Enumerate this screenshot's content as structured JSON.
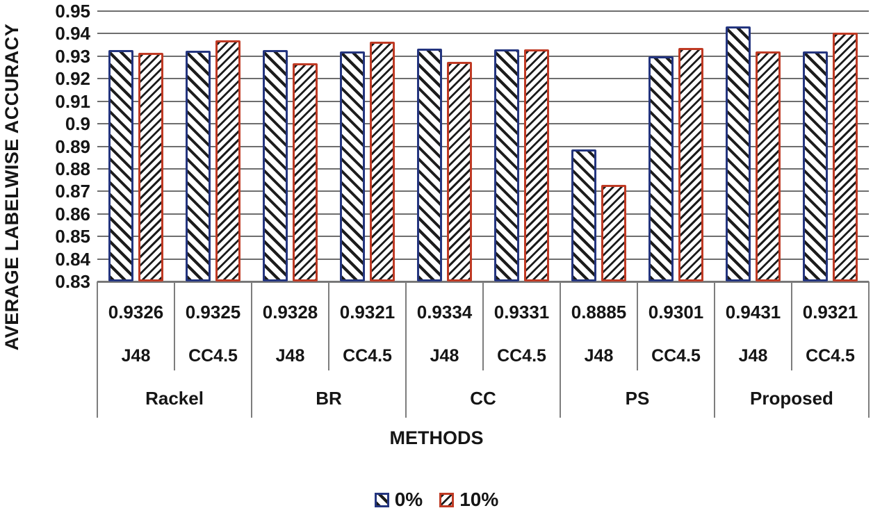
{
  "chart_data": {
    "type": "bar",
    "title": "",
    "xlabel": "METHODS",
    "ylabel": "AVERAGE LABELWISE ACCURACY",
    "ylim": [
      0.83,
      0.95
    ],
    "ytick_step": 0.01,
    "ytick_labels": [
      "0.95",
      "0.94",
      "0.93",
      "0.92",
      "0.91",
      "0.9",
      "0.89",
      "0.88",
      "0.87",
      "0.86",
      "0.85",
      "0.84",
      "0.83"
    ],
    "grid": "horizontal",
    "legend_position": "bottom",
    "group_labels": [
      "Rackel",
      "BR",
      "CC",
      "PS",
      "Proposed"
    ],
    "categories": [
      {
        "method": "Rackel",
        "classifier": "J48",
        "value_label": "0.9326"
      },
      {
        "method": "Rackel",
        "classifier": "CC4.5",
        "value_label": "0.9325"
      },
      {
        "method": "BR",
        "classifier": "J48",
        "value_label": "0.9328"
      },
      {
        "method": "BR",
        "classifier": "CC4.5",
        "value_label": "0.9321"
      },
      {
        "method": "CC",
        "classifier": "J48",
        "value_label": "0.9334"
      },
      {
        "method": "CC",
        "classifier": "CC4.5",
        "value_label": "0.9331"
      },
      {
        "method": "PS",
        "classifier": "J48",
        "value_label": "0.8885"
      },
      {
        "method": "PS",
        "classifier": "CC4.5",
        "value_label": "0.9301"
      },
      {
        "method": "Proposed",
        "classifier": "J48",
        "value_label": "0.9431"
      },
      {
        "method": "Proposed",
        "classifier": "CC4.5",
        "value_label": "0.9321"
      }
    ],
    "series": [
      {
        "name": "0%",
        "border_color": "#24357f",
        "hatch": "\\",
        "values": [
          0.9326,
          0.9325,
          0.9328,
          0.9321,
          0.9334,
          0.9331,
          0.8885,
          0.9301,
          0.9431,
          0.9321
        ]
      },
      {
        "name": "10%",
        "border_color": "#bf3a24",
        "hatch": "/",
        "values": [
          0.9315,
          0.937,
          0.927,
          0.9365,
          0.9275,
          0.933,
          0.873,
          0.9335,
          0.932,
          0.9405
        ]
      }
    ]
  },
  "colors": {
    "gridline": "#6e6e6e",
    "table_line": "#7d7d7d",
    "hatch": "#1c1c1c",
    "bar_fill": "#ffffff",
    "text": "#151515"
  }
}
